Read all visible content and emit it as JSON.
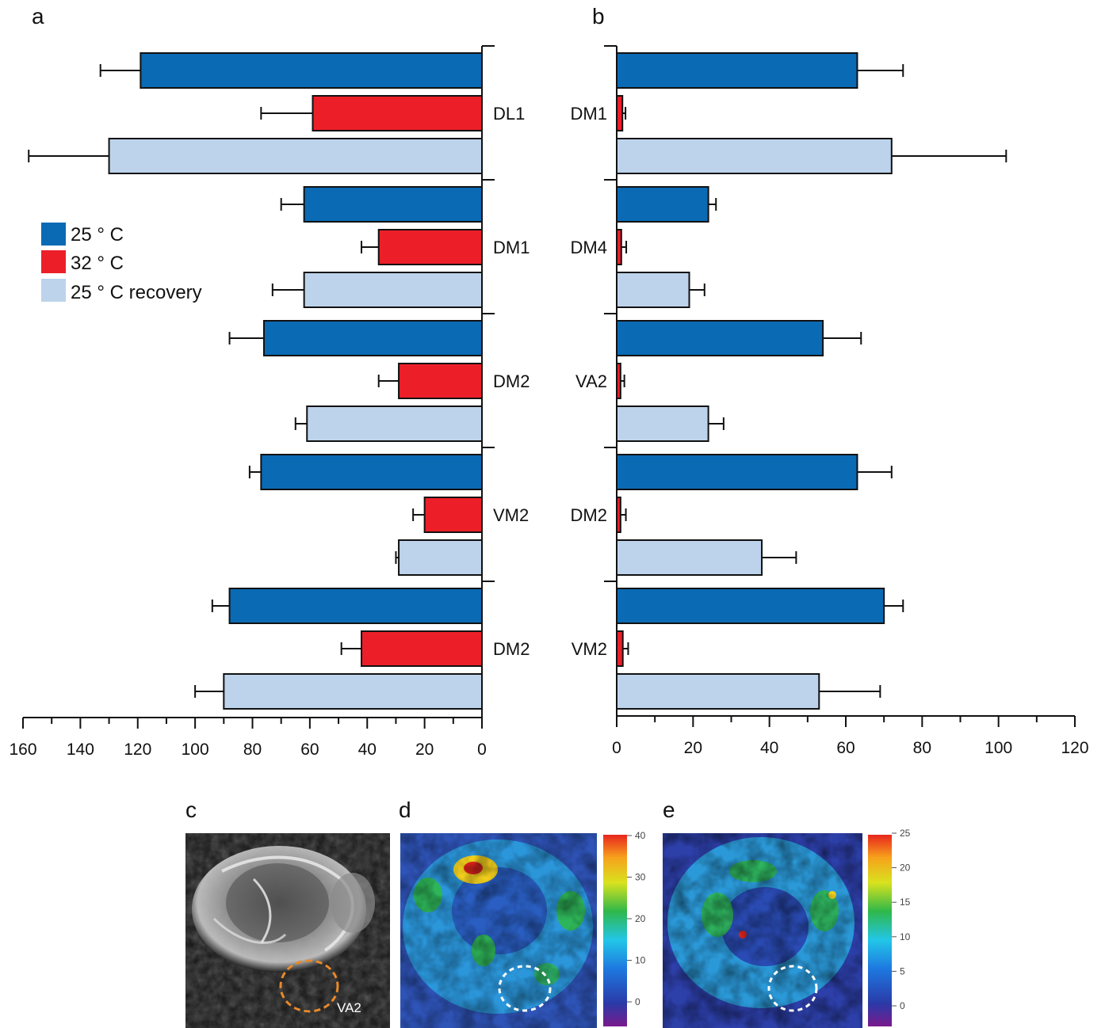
{
  "colors": {
    "c25": "#0a6ab4",
    "c32": "#ec1f29",
    "c25rec": "#bdd3ec",
    "axis": "#111111"
  },
  "legend": [
    {
      "label": "25 ° C",
      "color_key": "c25"
    },
    {
      "label": "32 ° C",
      "color_key": "c32"
    },
    {
      "label": "25 ° C recovery",
      "color_key": "c25rec"
    }
  ],
  "panels": {
    "a": "a",
    "b": "b",
    "c": "c",
    "d": "d",
    "e": "e"
  },
  "images": {
    "c": {
      "type": "grayscale fluorescence image",
      "roi_label": "VA2",
      "roi_color": "#e88a2a"
    },
    "d": {
      "type": "heat map",
      "colorbar_ticks": [
        "40",
        "30",
        "20",
        "10",
        "0"
      ]
    },
    "e": {
      "type": "heat map",
      "colorbar_ticks": [
        "25",
        "20",
        "15",
        "10",
        "5",
        "0"
      ]
    }
  },
  "chart_data": [
    {
      "panel": "a",
      "type": "bar",
      "orientation": "horizontal",
      "direction": "leftward",
      "categories": [
        "DL1",
        "DM1",
        "DM2",
        "VM2",
        "DM2"
      ],
      "series": [
        {
          "name": "25 ° C",
          "values": [
            119,
            62,
            76,
            77,
            88
          ],
          "errors": [
            14,
            8,
            12,
            4,
            6
          ]
        },
        {
          "name": "32 ° C",
          "values": [
            59,
            36,
            29,
            20,
            42
          ],
          "errors": [
            18,
            6,
            7,
            4,
            7
          ]
        },
        {
          "name": "25 ° C recovery",
          "values": [
            130,
            62,
            61,
            29,
            90
          ],
          "errors": [
            28,
            11,
            4,
            1,
            10
          ]
        }
      ],
      "xlim": [
        160,
        0
      ],
      "xticks": [
        "160",
        "140",
        "120",
        "100",
        "80",
        "60",
        "40",
        "20",
        "0"
      ]
    },
    {
      "panel": "b",
      "type": "bar",
      "orientation": "horizontal",
      "categories": [
        "DM1",
        "DM4",
        "VA2",
        "DM2",
        "VM2"
      ],
      "series": [
        {
          "name": "25 ° C",
          "values": [
            63,
            24,
            54,
            63,
            70
          ],
          "errors": [
            12,
            2,
            10,
            9,
            5
          ]
        },
        {
          "name": "32 ° C",
          "values": [
            1.5,
            1.2,
            1.0,
            1.0,
            1.6
          ],
          "errors": [
            0.8,
            1.3,
            1.0,
            1.4,
            1.4
          ]
        },
        {
          "name": "25 ° C recovery",
          "values": [
            72,
            19,
            24,
            38,
            53
          ],
          "errors": [
            30,
            4,
            4,
            9,
            16
          ]
        }
      ],
      "xlim": [
        0,
        120
      ],
      "xticks": [
        "0",
        "20",
        "40",
        "60",
        "80",
        "100",
        "120"
      ]
    }
  ]
}
